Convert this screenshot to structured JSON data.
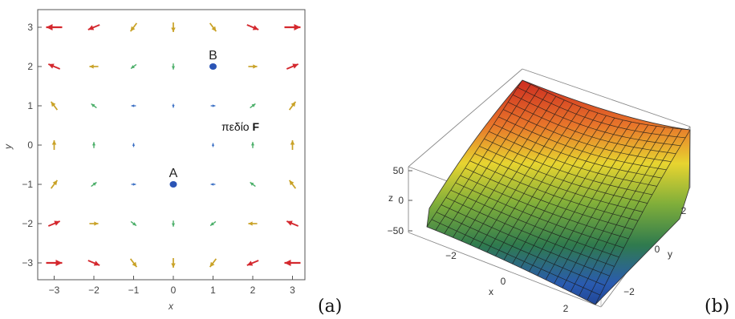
{
  "panel_a": {
    "panel_label": "(a)",
    "x_label": "x",
    "y_label": "y",
    "x_ticks": [
      "−3",
      "−2",
      "−1",
      "0",
      "1",
      "2",
      "3"
    ],
    "y_ticks": [
      "3",
      "2",
      "1",
      "0",
      "−1",
      "−2",
      "−3"
    ],
    "field_label_prefix": "πεδίο ",
    "field_label_bold": "F",
    "points": [
      {
        "name": "A",
        "x": 0,
        "y": -1
      },
      {
        "name": "B",
        "x": 1,
        "y": 2
      }
    ],
    "colors": {
      "low": "#3a6fc4",
      "mid": "#4caf6a",
      "high": "#c9a227",
      "top": "#d4282e",
      "point": "#2b54b5"
    }
  },
  "panel_b": {
    "panel_label": "(b)",
    "z_label": "z",
    "x_label": "x",
    "y_label": "y",
    "z_ticks": [
      "50",
      "0",
      "−50"
    ],
    "x_ticks": [
      "−2",
      "0",
      "2"
    ],
    "y_ticks": [
      "2",
      "0",
      "−2"
    ]
  }
}
